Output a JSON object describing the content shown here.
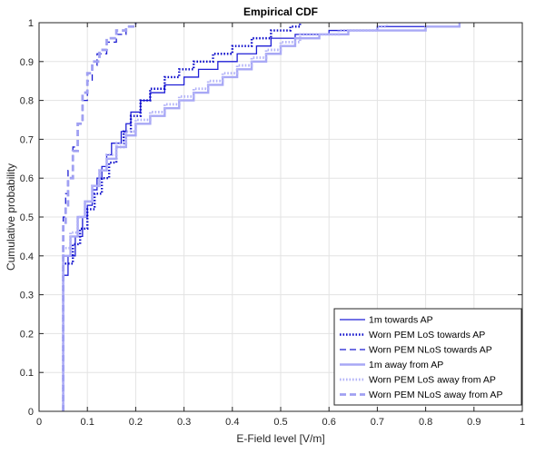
{
  "chart_data": {
    "type": "line",
    "title": "Empirical CDF",
    "xlabel": "E-Field level [V/m]",
    "ylabel": "Cumulative probability",
    "xlim": [
      0,
      1
    ],
    "ylim": [
      0,
      1
    ],
    "xticks": [
      "0",
      "0.1",
      "0.2",
      "0.3",
      "0.4",
      "0.5",
      "0.6",
      "0.7",
      "0.8",
      "0.9",
      "1"
    ],
    "yticks": [
      "0",
      "0.1",
      "0.2",
      "0.3",
      "0.4",
      "0.5",
      "0.6",
      "0.7",
      "0.8",
      "0.9",
      "1"
    ],
    "grid": true,
    "legend_position": "bottom-right",
    "series": [
      {
        "name": "1m towards AP",
        "color": "#1f1fd6",
        "style": "solid",
        "points": [
          [
            0.05,
            0
          ],
          [
            0.05,
            0.35
          ],
          [
            0.06,
            0.35
          ],
          [
            0.06,
            0.4
          ],
          [
            0.075,
            0.4
          ],
          [
            0.075,
            0.45
          ],
          [
            0.09,
            0.45
          ],
          [
            0.09,
            0.5
          ],
          [
            0.1,
            0.5
          ],
          [
            0.1,
            0.53
          ],
          [
            0.11,
            0.53
          ],
          [
            0.11,
            0.57
          ],
          [
            0.12,
            0.57
          ],
          [
            0.12,
            0.6
          ],
          [
            0.13,
            0.6
          ],
          [
            0.13,
            0.63
          ],
          [
            0.14,
            0.63
          ],
          [
            0.14,
            0.66
          ],
          [
            0.15,
            0.66
          ],
          [
            0.15,
            0.69
          ],
          [
            0.17,
            0.69
          ],
          [
            0.17,
            0.72
          ],
          [
            0.18,
            0.72
          ],
          [
            0.18,
            0.74
          ],
          [
            0.19,
            0.74
          ],
          [
            0.19,
            0.77
          ],
          [
            0.21,
            0.77
          ],
          [
            0.21,
            0.8
          ],
          [
            0.23,
            0.8
          ],
          [
            0.23,
            0.82
          ],
          [
            0.26,
            0.82
          ],
          [
            0.26,
            0.84
          ],
          [
            0.3,
            0.84
          ],
          [
            0.3,
            0.86
          ],
          [
            0.33,
            0.86
          ],
          [
            0.33,
            0.88
          ],
          [
            0.37,
            0.88
          ],
          [
            0.37,
            0.9
          ],
          [
            0.41,
            0.9
          ],
          [
            0.41,
            0.92
          ],
          [
            0.45,
            0.92
          ],
          [
            0.45,
            0.94
          ],
          [
            0.48,
            0.94
          ],
          [
            0.48,
            0.96
          ],
          [
            0.53,
            0.96
          ],
          [
            0.53,
            0.97
          ],
          [
            0.6,
            0.97
          ],
          [
            0.6,
            0.98
          ],
          [
            0.7,
            0.98
          ],
          [
            0.7,
            0.99
          ],
          [
            0.87,
            0.99
          ],
          [
            0.87,
            1
          ]
        ]
      },
      {
        "name": "Worn PEM LoS towards AP",
        "color": "#1010cc",
        "style": "dotted",
        "points": [
          [
            0.05,
            0
          ],
          [
            0.05,
            0.38
          ],
          [
            0.07,
            0.38
          ],
          [
            0.07,
            0.43
          ],
          [
            0.085,
            0.43
          ],
          [
            0.085,
            0.47
          ],
          [
            0.1,
            0.47
          ],
          [
            0.1,
            0.52
          ],
          [
            0.115,
            0.52
          ],
          [
            0.115,
            0.56
          ],
          [
            0.13,
            0.56
          ],
          [
            0.13,
            0.6
          ],
          [
            0.145,
            0.6
          ],
          [
            0.145,
            0.64
          ],
          [
            0.16,
            0.64
          ],
          [
            0.16,
            0.68
          ],
          [
            0.175,
            0.68
          ],
          [
            0.175,
            0.72
          ],
          [
            0.19,
            0.72
          ],
          [
            0.19,
            0.76
          ],
          [
            0.21,
            0.76
          ],
          [
            0.21,
            0.8
          ],
          [
            0.23,
            0.8
          ],
          [
            0.23,
            0.83
          ],
          [
            0.26,
            0.83
          ],
          [
            0.26,
            0.86
          ],
          [
            0.29,
            0.86
          ],
          [
            0.29,
            0.88
          ],
          [
            0.32,
            0.88
          ],
          [
            0.32,
            0.9
          ],
          [
            0.36,
            0.9
          ],
          [
            0.36,
            0.92
          ],
          [
            0.4,
            0.92
          ],
          [
            0.4,
            0.94
          ],
          [
            0.44,
            0.94
          ],
          [
            0.44,
            0.96
          ],
          [
            0.48,
            0.96
          ],
          [
            0.48,
            0.98
          ],
          [
            0.52,
            0.98
          ],
          [
            0.52,
            0.99
          ],
          [
            0.54,
            0.99
          ],
          [
            0.54,
            1
          ]
        ]
      },
      {
        "name": "Worn PEM NLoS towards AP",
        "color": "#1a1ad2",
        "style": "dashed",
        "points": [
          [
            0.05,
            0
          ],
          [
            0.05,
            0.5
          ],
          [
            0.055,
            0.5
          ],
          [
            0.055,
            0.56
          ],
          [
            0.06,
            0.56
          ],
          [
            0.06,
            0.62
          ],
          [
            0.07,
            0.62
          ],
          [
            0.07,
            0.68
          ],
          [
            0.08,
            0.68
          ],
          [
            0.08,
            0.74
          ],
          [
            0.09,
            0.74
          ],
          [
            0.09,
            0.8
          ],
          [
            0.1,
            0.8
          ],
          [
            0.1,
            0.85
          ],
          [
            0.11,
            0.85
          ],
          [
            0.11,
            0.89
          ],
          [
            0.12,
            0.89
          ],
          [
            0.12,
            0.92
          ],
          [
            0.14,
            0.92
          ],
          [
            0.14,
            0.95
          ],
          [
            0.16,
            0.95
          ],
          [
            0.16,
            0.97
          ],
          [
            0.18,
            0.97
          ],
          [
            0.18,
            0.99
          ],
          [
            0.2,
            0.99
          ],
          [
            0.2,
            1
          ]
        ]
      },
      {
        "name": "1m away from AP",
        "color": "#a8a8f5",
        "style": "solid",
        "points": [
          [
            0.05,
            0
          ],
          [
            0.05,
            0.4
          ],
          [
            0.065,
            0.4
          ],
          [
            0.065,
            0.45
          ],
          [
            0.08,
            0.45
          ],
          [
            0.08,
            0.5
          ],
          [
            0.095,
            0.5
          ],
          [
            0.095,
            0.54
          ],
          [
            0.11,
            0.54
          ],
          [
            0.11,
            0.58
          ],
          [
            0.125,
            0.58
          ],
          [
            0.125,
            0.62
          ],
          [
            0.14,
            0.62
          ],
          [
            0.14,
            0.65
          ],
          [
            0.16,
            0.65
          ],
          [
            0.16,
            0.68
          ],
          [
            0.18,
            0.68
          ],
          [
            0.18,
            0.71
          ],
          [
            0.2,
            0.71
          ],
          [
            0.2,
            0.74
          ],
          [
            0.23,
            0.74
          ],
          [
            0.23,
            0.76
          ],
          [
            0.26,
            0.76
          ],
          [
            0.26,
            0.78
          ],
          [
            0.29,
            0.78
          ],
          [
            0.29,
            0.8
          ],
          [
            0.32,
            0.8
          ],
          [
            0.32,
            0.82
          ],
          [
            0.35,
            0.82
          ],
          [
            0.35,
            0.84
          ],
          [
            0.38,
            0.84
          ],
          [
            0.38,
            0.86
          ],
          [
            0.41,
            0.86
          ],
          [
            0.41,
            0.88
          ],
          [
            0.44,
            0.88
          ],
          [
            0.44,
            0.9
          ],
          [
            0.47,
            0.9
          ],
          [
            0.47,
            0.92
          ],
          [
            0.5,
            0.92
          ],
          [
            0.5,
            0.94
          ],
          [
            0.53,
            0.94
          ],
          [
            0.53,
            0.96
          ],
          [
            0.58,
            0.96
          ],
          [
            0.58,
            0.97
          ],
          [
            0.64,
            0.97
          ],
          [
            0.64,
            0.98
          ],
          [
            0.8,
            0.98
          ],
          [
            0.8,
            0.99
          ],
          [
            0.87,
            0.99
          ],
          [
            0.87,
            1
          ]
        ]
      },
      {
        "name": "Worn PEM LoS away from AP",
        "color": "#b4b4f8",
        "style": "dotted",
        "points": [
          [
            0.05,
            0
          ],
          [
            0.05,
            0.42
          ],
          [
            0.065,
            0.42
          ],
          [
            0.065,
            0.46
          ],
          [
            0.08,
            0.46
          ],
          [
            0.08,
            0.5
          ],
          [
            0.095,
            0.5
          ],
          [
            0.095,
            0.54
          ],
          [
            0.11,
            0.54
          ],
          [
            0.11,
            0.58
          ],
          [
            0.125,
            0.58
          ],
          [
            0.125,
            0.62
          ],
          [
            0.14,
            0.62
          ],
          [
            0.14,
            0.66
          ],
          [
            0.16,
            0.66
          ],
          [
            0.16,
            0.69
          ],
          [
            0.18,
            0.69
          ],
          [
            0.18,
            0.72
          ],
          [
            0.2,
            0.72
          ],
          [
            0.2,
            0.75
          ],
          [
            0.23,
            0.75
          ],
          [
            0.23,
            0.77
          ],
          [
            0.26,
            0.77
          ],
          [
            0.26,
            0.79
          ],
          [
            0.29,
            0.79
          ],
          [
            0.29,
            0.81
          ],
          [
            0.32,
            0.81
          ],
          [
            0.32,
            0.83
          ],
          [
            0.35,
            0.83
          ],
          [
            0.35,
            0.85
          ],
          [
            0.38,
            0.85
          ],
          [
            0.38,
            0.87
          ],
          [
            0.41,
            0.87
          ],
          [
            0.41,
            0.89
          ],
          [
            0.44,
            0.89
          ],
          [
            0.44,
            0.91
          ],
          [
            0.47,
            0.91
          ],
          [
            0.47,
            0.93
          ],
          [
            0.5,
            0.93
          ],
          [
            0.5,
            0.95
          ],
          [
            0.54,
            0.95
          ],
          [
            0.54,
            0.97
          ],
          [
            0.62,
            0.97
          ],
          [
            0.62,
            0.98
          ],
          [
            0.7,
            0.98
          ],
          [
            0.7,
            0.99
          ],
          [
            0.72,
            0.99
          ],
          [
            0.72,
            1
          ]
        ]
      },
      {
        "name": "Worn PEM NLoS away from AP",
        "color": "#a0a0f2",
        "style": "dashed",
        "points": [
          [
            0.05,
            0
          ],
          [
            0.05,
            0.48
          ],
          [
            0.055,
            0.48
          ],
          [
            0.055,
            0.53
          ],
          [
            0.06,
            0.53
          ],
          [
            0.06,
            0.6
          ],
          [
            0.07,
            0.6
          ],
          [
            0.07,
            0.67
          ],
          [
            0.08,
            0.67
          ],
          [
            0.08,
            0.74
          ],
          [
            0.09,
            0.74
          ],
          [
            0.09,
            0.82
          ],
          [
            0.1,
            0.82
          ],
          [
            0.1,
            0.87
          ],
          [
            0.11,
            0.87
          ],
          [
            0.11,
            0.9
          ],
          [
            0.125,
            0.9
          ],
          [
            0.125,
            0.93
          ],
          [
            0.14,
            0.93
          ],
          [
            0.14,
            0.96
          ],
          [
            0.16,
            0.96
          ],
          [
            0.16,
            0.98
          ],
          [
            0.18,
            0.98
          ],
          [
            0.18,
            0.99
          ],
          [
            0.2,
            0.99
          ],
          [
            0.2,
            1
          ]
        ]
      }
    ]
  }
}
